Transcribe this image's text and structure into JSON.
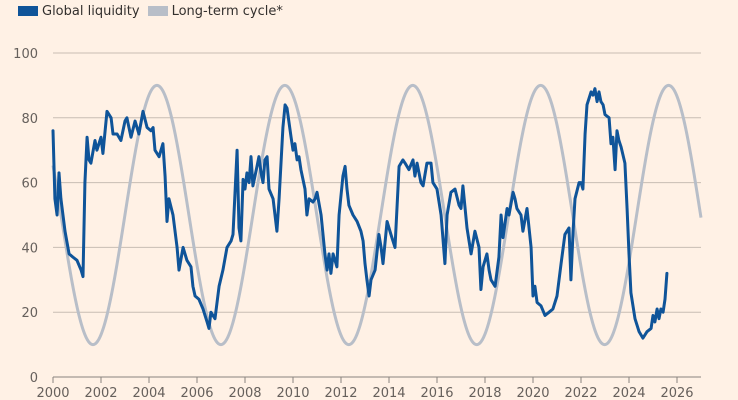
{
  "chart_data": {
    "type": "line",
    "title": "",
    "xlabel": "",
    "ylabel": "",
    "xlim": [
      2000,
      2027
    ],
    "ylim": [
      0,
      100
    ],
    "grid": true,
    "legend_position": "top-left",
    "x_ticks": [
      "2000",
      "2002",
      "2004",
      "2006",
      "2008",
      "2010",
      "2012",
      "2014",
      "2016",
      "2018",
      "2020",
      "2022",
      "2024",
      "2026"
    ],
    "y_ticks": [
      "0",
      "20",
      "40",
      "60",
      "80",
      "100"
    ],
    "colors": {
      "global_liquidity": "#0f5499",
      "long_term_cycle": "#b8bec8",
      "background": "#fff1e5",
      "grid": "#c8bdb3",
      "axis": "#8a847f"
    },
    "series": [
      {
        "name": "Global liquidity",
        "points": [
          [
            2000.0,
            76
          ],
          [
            2000.08,
            55
          ],
          [
            2000.17,
            50
          ],
          [
            2000.25,
            63
          ],
          [
            2000.33,
            55
          ],
          [
            2000.5,
            45
          ],
          [
            2000.67,
            38
          ],
          [
            2000.83,
            37
          ],
          [
            2001.0,
            36
          ],
          [
            2001.17,
            33
          ],
          [
            2001.25,
            31
          ],
          [
            2001.33,
            60
          ],
          [
            2001.42,
            74
          ],
          [
            2001.5,
            67
          ],
          [
            2001.58,
            66
          ],
          [
            2001.75,
            73
          ],
          [
            2001.83,
            70
          ],
          [
            2002.0,
            74
          ],
          [
            2002.08,
            69
          ],
          [
            2002.25,
            82
          ],
          [
            2002.42,
            80
          ],
          [
            2002.5,
            75
          ],
          [
            2002.67,
            75
          ],
          [
            2002.83,
            73
          ],
          [
            2003.0,
            79
          ],
          [
            2003.08,
            80
          ],
          [
            2003.25,
            74
          ],
          [
            2003.42,
            79
          ],
          [
            2003.58,
            75
          ],
          [
            2003.75,
            82
          ],
          [
            2003.92,
            77
          ],
          [
            2004.08,
            76
          ],
          [
            2004.17,
            77
          ],
          [
            2004.25,
            70
          ],
          [
            2004.42,
            68
          ],
          [
            2004.58,
            72
          ],
          [
            2004.67,
            62
          ],
          [
            2004.75,
            48
          ],
          [
            2004.83,
            55
          ],
          [
            2005.0,
            50
          ],
          [
            2005.17,
            40
          ],
          [
            2005.25,
            33
          ],
          [
            2005.42,
            40
          ],
          [
            2005.58,
            36
          ],
          [
            2005.75,
            34
          ],
          [
            2005.83,
            28
          ],
          [
            2005.92,
            25
          ],
          [
            2006.08,
            24
          ],
          [
            2006.25,
            21
          ],
          [
            2006.42,
            17
          ],
          [
            2006.5,
            15
          ],
          [
            2006.58,
            20
          ],
          [
            2006.75,
            18
          ],
          [
            2006.92,
            28
          ],
          [
            2007.08,
            33
          ],
          [
            2007.25,
            40
          ],
          [
            2007.42,
            42
          ],
          [
            2007.5,
            44
          ],
          [
            2007.67,
            70
          ],
          [
            2007.75,
            46
          ],
          [
            2007.83,
            42
          ],
          [
            2007.92,
            61
          ],
          [
            2008.0,
            58
          ],
          [
            2008.08,
            63
          ],
          [
            2008.17,
            60
          ],
          [
            2008.25,
            68
          ],
          [
            2008.33,
            59
          ],
          [
            2008.5,
            65
          ],
          [
            2008.58,
            68
          ],
          [
            2008.67,
            63
          ],
          [
            2008.75,
            60
          ],
          [
            2008.83,
            67
          ],
          [
            2008.92,
            68
          ],
          [
            2009.0,
            58
          ],
          [
            2009.17,
            55
          ],
          [
            2009.33,
            45
          ],
          [
            2009.42,
            55
          ],
          [
            2009.58,
            77
          ],
          [
            2009.67,
            84
          ],
          [
            2009.75,
            83
          ],
          [
            2009.92,
            74
          ],
          [
            2010.0,
            70
          ],
          [
            2010.08,
            72
          ],
          [
            2010.17,
            67
          ],
          [
            2010.25,
            68
          ],
          [
            2010.33,
            64
          ],
          [
            2010.5,
            58
          ],
          [
            2010.58,
            50
          ],
          [
            2010.67,
            55
          ],
          [
            2010.83,
            54
          ],
          [
            2010.92,
            55
          ],
          [
            2011.0,
            57
          ],
          [
            2011.17,
            50
          ],
          [
            2011.33,
            38
          ],
          [
            2011.42,
            33
          ],
          [
            2011.5,
            38
          ],
          [
            2011.58,
            32
          ],
          [
            2011.67,
            38
          ],
          [
            2011.75,
            36
          ],
          [
            2011.83,
            34
          ],
          [
            2011.92,
            50
          ],
          [
            2012.08,
            62
          ],
          [
            2012.17,
            65
          ],
          [
            2012.25,
            58
          ],
          [
            2012.33,
            53
          ],
          [
            2012.5,
            50
          ],
          [
            2012.67,
            48
          ],
          [
            2012.83,
            45
          ],
          [
            2012.92,
            42
          ],
          [
            2013.0,
            35
          ],
          [
            2013.08,
            30
          ],
          [
            2013.17,
            25
          ],
          [
            2013.25,
            30
          ],
          [
            2013.42,
            33
          ],
          [
            2013.58,
            44
          ],
          [
            2013.67,
            40
          ],
          [
            2013.75,
            35
          ],
          [
            2013.92,
            48
          ],
          [
            2014.08,
            44
          ],
          [
            2014.25,
            40
          ],
          [
            2014.42,
            65
          ],
          [
            2014.58,
            67
          ],
          [
            2014.67,
            66
          ],
          [
            2014.83,
            64
          ],
          [
            2015.0,
            67
          ],
          [
            2015.08,
            62
          ],
          [
            2015.17,
            66
          ],
          [
            2015.33,
            60
          ],
          [
            2015.42,
            59
          ],
          [
            2015.58,
            66
          ],
          [
            2015.75,
            66
          ],
          [
            2015.83,
            60
          ],
          [
            2016.0,
            58
          ],
          [
            2016.17,
            50
          ],
          [
            2016.33,
            35
          ],
          [
            2016.42,
            50
          ],
          [
            2016.58,
            57
          ],
          [
            2016.75,
            58
          ],
          [
            2016.92,
            53
          ],
          [
            2017.0,
            52
          ],
          [
            2017.08,
            59
          ],
          [
            2017.25,
            46
          ],
          [
            2017.42,
            38
          ],
          [
            2017.58,
            45
          ],
          [
            2017.75,
            40
          ],
          [
            2017.83,
            27
          ],
          [
            2017.92,
            34
          ],
          [
            2018.08,
            38
          ],
          [
            2018.17,
            33
          ],
          [
            2018.25,
            30
          ],
          [
            2018.42,
            28
          ],
          [
            2018.58,
            37
          ],
          [
            2018.67,
            50
          ],
          [
            2018.75,
            43
          ],
          [
            2018.92,
            52
          ],
          [
            2019.0,
            50
          ],
          [
            2019.17,
            57
          ],
          [
            2019.25,
            55
          ],
          [
            2019.33,
            52
          ],
          [
            2019.5,
            50
          ],
          [
            2019.58,
            45
          ],
          [
            2019.75,
            52
          ],
          [
            2019.92,
            40
          ],
          [
            2020.0,
            25
          ],
          [
            2020.08,
            28
          ],
          [
            2020.17,
            23
          ],
          [
            2020.33,
            22
          ],
          [
            2020.5,
            19
          ],
          [
            2020.67,
            20
          ],
          [
            2020.83,
            21
          ],
          [
            2021.0,
            25
          ],
          [
            2021.17,
            35
          ],
          [
            2021.33,
            44
          ],
          [
            2021.5,
            46
          ],
          [
            2021.58,
            30
          ],
          [
            2021.67,
            45
          ],
          [
            2021.75,
            55
          ],
          [
            2021.92,
            60
          ],
          [
            2022.0,
            60
          ],
          [
            2022.08,
            58
          ],
          [
            2022.17,
            75
          ],
          [
            2022.25,
            84
          ],
          [
            2022.42,
            88
          ],
          [
            2022.5,
            87
          ],
          [
            2022.58,
            89
          ],
          [
            2022.67,
            85
          ],
          [
            2022.75,
            88
          ],
          [
            2022.83,
            85
          ],
          [
            2022.92,
            84
          ],
          [
            2023.0,
            81
          ],
          [
            2023.17,
            80
          ],
          [
            2023.25,
            72
          ],
          [
            2023.33,
            74
          ],
          [
            2023.42,
            64
          ],
          [
            2023.5,
            76
          ],
          [
            2023.58,
            73
          ],
          [
            2023.67,
            71
          ],
          [
            2023.83,
            66
          ],
          [
            2023.92,
            52
          ],
          [
            2024.0,
            38
          ],
          [
            2024.08,
            26
          ],
          [
            2024.25,
            18
          ],
          [
            2024.42,
            14
          ],
          [
            2024.58,
            12
          ],
          [
            2024.75,
            14
          ],
          [
            2024.92,
            15
          ],
          [
            2025.0,
            19
          ],
          [
            2025.08,
            17
          ],
          [
            2025.17,
            21
          ],
          [
            2025.25,
            18
          ],
          [
            2025.33,
            21
          ],
          [
            2025.42,
            20
          ],
          [
            2025.5,
            24
          ],
          [
            2025.58,
            32
          ]
        ]
      },
      {
        "name": "Long-term cycle*",
        "model": {
          "center": 50,
          "amplitude": 40,
          "period_years": 5.33,
          "peak_year": 2004.33,
          "start": 2000,
          "end": 2027
        }
      }
    ]
  }
}
